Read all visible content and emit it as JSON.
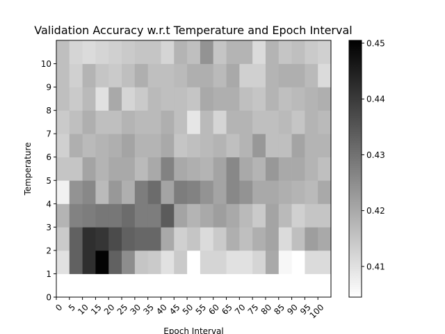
{
  "chart_data": {
    "type": "heatmap",
    "title": "Validation Accuracy w.r.t Temperature and Epoch Interval",
    "xlabel": "Epoch Interval",
    "ylabel": "Temperature",
    "x_ticks": [
      "0",
      "5",
      "10",
      "15",
      "20",
      "25",
      "30",
      "35",
      "40",
      "45",
      "50",
      "55",
      "60",
      "65",
      "70",
      "75",
      "80",
      "85",
      "90",
      "95",
      "100"
    ],
    "y_ticks": [
      "0",
      "1",
      "2",
      "3",
      "4",
      "5",
      "6",
      "7",
      "8",
      "9",
      "10"
    ],
    "colorbar": {
      "colormap": "gray_r",
      "vmin": 0.4045,
      "vmax": 0.4505,
      "ticks": [
        "0.41",
        "0.42",
        "0.43",
        "0.44",
        "0.45"
      ],
      "tick_values": [
        0.41,
        0.42,
        0.43,
        0.44,
        0.45
      ]
    },
    "grid": false,
    "values": [
      [
        0.4045,
        0.4045,
        0.4045,
        0.4045,
        0.4045,
        0.4045,
        0.4045,
        0.4045,
        0.4045,
        0.4045,
        0.4045,
        0.4045,
        0.4045,
        0.4045,
        0.4045,
        0.4045,
        0.4045,
        0.4045,
        0.4045,
        0.4045,
        0.4045
      ],
      [
        0.41,
        0.433,
        0.442,
        0.45,
        0.433,
        0.425,
        0.415,
        0.414,
        0.41,
        0.414,
        0.4045,
        0.412,
        0.412,
        0.41,
        0.41,
        0.412,
        0.42,
        0.406,
        0.4045,
        0.411,
        0.411
      ],
      [
        0.414,
        0.433,
        0.442,
        0.441,
        0.437,
        0.433,
        0.432,
        0.432,
        0.42,
        0.413,
        0.415,
        0.411,
        0.414,
        0.419,
        0.416,
        0.419,
        0.421,
        0.411,
        0.416,
        0.422,
        0.42
      ],
      [
        0.418,
        0.427,
        0.428,
        0.429,
        0.429,
        0.431,
        0.428,
        0.428,
        0.434,
        0.421,
        0.418,
        0.42,
        0.422,
        0.42,
        0.417,
        0.414,
        0.421,
        0.417,
        0.413,
        0.415,
        0.415
      ],
      [
        0.407,
        0.424,
        0.426,
        0.417,
        0.423,
        0.419,
        0.428,
        0.431,
        0.421,
        0.428,
        0.427,
        0.424,
        0.421,
        0.426,
        0.424,
        0.42,
        0.42,
        0.419,
        0.418,
        0.417,
        0.42
      ],
      [
        0.415,
        0.415,
        0.421,
        0.418,
        0.42,
        0.42,
        0.417,
        0.42,
        0.427,
        0.42,
        0.419,
        0.418,
        0.421,
        0.426,
        0.42,
        0.418,
        0.423,
        0.42,
        0.42,
        0.418,
        0.416
      ],
      [
        0.413,
        0.419,
        0.417,
        0.418,
        0.419,
        0.421,
        0.418,
        0.418,
        0.42,
        0.415,
        0.416,
        0.417,
        0.418,
        0.416,
        0.418,
        0.423,
        0.416,
        0.416,
        0.421,
        0.418,
        0.418
      ],
      [
        0.414,
        0.416,
        0.419,
        0.416,
        0.416,
        0.418,
        0.417,
        0.417,
        0.419,
        0.416,
        0.409,
        0.417,
        0.412,
        0.418,
        0.418,
        0.416,
        0.416,
        0.417,
        0.415,
        0.418,
        0.417
      ],
      [
        0.416,
        0.414,
        0.417,
        0.41,
        0.42,
        0.412,
        0.414,
        0.417,
        0.416,
        0.416,
        0.415,
        0.42,
        0.419,
        0.419,
        0.416,
        0.415,
        0.418,
        0.416,
        0.417,
        0.418,
        0.419
      ],
      [
        0.416,
        0.413,
        0.418,
        0.415,
        0.414,
        0.416,
        0.419,
        0.416,
        0.416,
        0.417,
        0.419,
        0.419,
        0.417,
        0.42,
        0.413,
        0.413,
        0.418,
        0.419,
        0.419,
        0.417,
        0.411
      ],
      [
        0.416,
        0.412,
        0.411,
        0.412,
        0.413,
        0.414,
        0.415,
        0.415,
        0.412,
        0.418,
        0.416,
        0.424,
        0.415,
        0.418,
        0.418,
        0.411,
        0.418,
        0.415,
        0.416,
        0.414,
        0.413
      ]
    ]
  }
}
